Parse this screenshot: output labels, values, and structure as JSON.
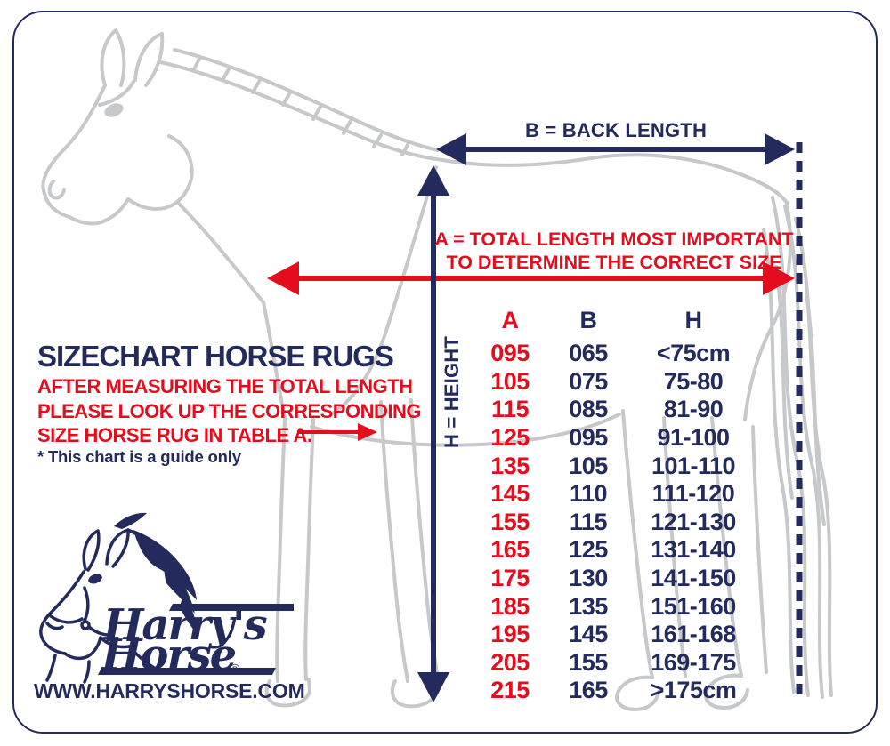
{
  "measurements": {
    "back_length_label": "B = BACK LENGTH",
    "total_length_label_line1": "A = TOTAL LENGTH MOST IMPORTANT",
    "total_length_label_line2": "TO DETERMINE THE CORRECT SIZE",
    "height_label": "H = HEIGHT"
  },
  "info": {
    "title": "SIZECHART HORSE RUGS",
    "instructions": [
      "AFTER MEASURING THE TOTAL LENGTH",
      "PLEASE LOOK UP THE CORRESPONDING",
      "SIZE HORSE RUG IN TABLE A."
    ],
    "note": "* This chart is a guide only"
  },
  "size_table": {
    "headers": [
      "A",
      "B",
      "H"
    ],
    "rows": [
      [
        "095",
        "065",
        "<75cm"
      ],
      [
        "105",
        "075",
        "75-80"
      ],
      [
        "115",
        "085",
        "81-90"
      ],
      [
        "125",
        "095",
        "91-100"
      ],
      [
        "135",
        "105",
        "101-110"
      ],
      [
        "145",
        "110",
        "111-120"
      ],
      [
        "155",
        "115",
        "121-130"
      ],
      [
        "165",
        "125",
        "131-140"
      ],
      [
        "175",
        "130",
        "141-150"
      ],
      [
        "185",
        "135",
        "151-160"
      ],
      [
        "195",
        "145",
        "161-168"
      ],
      [
        "205",
        "155",
        "169-175"
      ],
      [
        "215",
        "165",
        ">175cm"
      ]
    ]
  },
  "logo": {
    "brand_word1": "Harry's",
    "brand_word2": "Horse",
    "registered_mark": "®",
    "website": "WWW.HARRYSHORSE.COM"
  },
  "colors": {
    "navy": "#232a5c",
    "red": "#e30d1e",
    "illustration_gray": "#c6c8ca"
  }
}
